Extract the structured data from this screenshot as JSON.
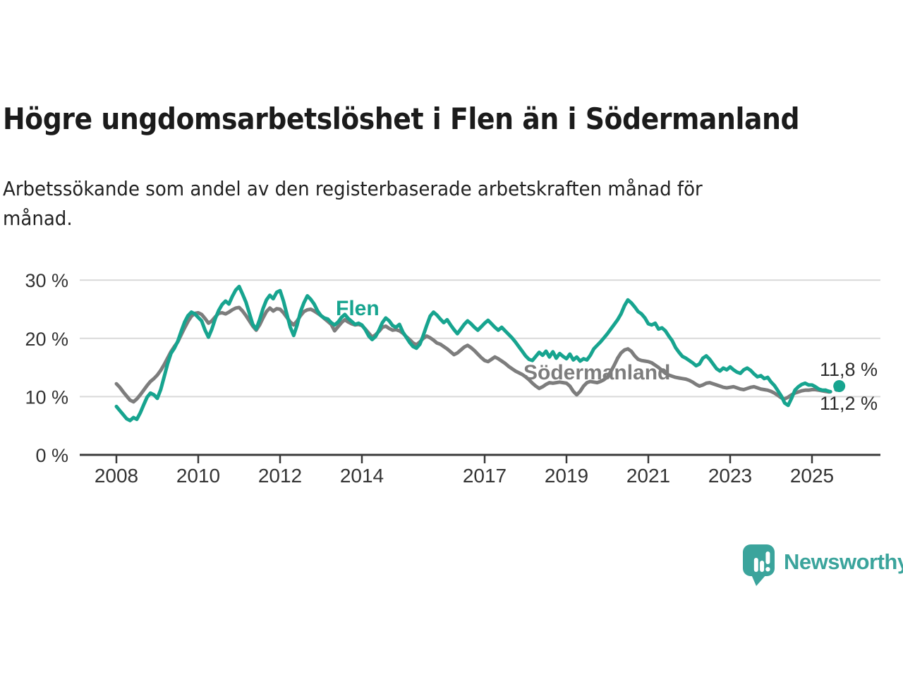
{
  "brand": {
    "name": "Newsworthy",
    "logo_icon": "speech-bubble-bar-chart-icon",
    "color": "#3ba49c"
  },
  "chart_data": {
    "type": "line",
    "title": "Högre ungdomsarbetslöshet i Flen än i Södermanland",
    "subtitle_lines": [
      "Arbetssökande som andel av den registerbaserade arbetskraften månad för",
      "månad."
    ],
    "frequency": "monthly",
    "x_start": 2008.0,
    "x_end": 2025.67,
    "x_ticks": [
      2008,
      2010,
      2012,
      2014,
      2017,
      2019,
      2021,
      2023,
      2025
    ],
    "y_ticks": [
      0,
      10,
      20,
      30
    ],
    "y_tick_labels": [
      "0 %",
      "10 %",
      "20 %",
      "30 %"
    ],
    "ylim": [
      0,
      32
    ],
    "grid": "horizontal",
    "legend_position": "inline-labels",
    "colors": {
      "axis": "#3a3a3a",
      "grid": "#d9d9d9",
      "tick_text": "#333333"
    },
    "series": [
      {
        "name": "Flen",
        "color": "#17a48f",
        "end_label": "11,8 %",
        "end_dot": true,
        "dashed_tail_points": 5,
        "values": [
          8.3,
          7.6,
          6.9,
          6.2,
          5.9,
          6.4,
          6.1,
          7.2,
          8.6,
          9.9,
          10.6,
          10.3,
          9.7,
          11.2,
          13.4,
          15.6,
          17.4,
          18.3,
          19.5,
          21.2,
          22.8,
          23.9,
          24.5,
          24.2,
          23.6,
          23.0,
          21.4,
          20.2,
          21.6,
          23.4,
          24.8,
          25.8,
          26.4,
          25.9,
          27.2,
          28.3,
          28.9,
          27.6,
          26.2,
          24.3,
          22.4,
          21.6,
          23.2,
          25.1,
          26.6,
          27.4,
          26.8,
          27.9,
          28.2,
          26.4,
          24.1,
          21.9,
          20.5,
          22.3,
          24.6,
          26.1,
          27.3,
          26.7,
          25.9,
          24.7,
          23.9,
          23.5,
          23.3,
          22.7,
          22.3,
          22.8,
          23.6,
          24.1,
          23.4,
          22.9,
          22.4,
          22.6,
          22.3,
          21.5,
          20.4,
          19.8,
          20.3,
          21.4,
          22.7,
          23.5,
          23.0,
          22.2,
          21.9,
          22.4,
          21.1,
          20.2,
          19.3,
          18.6,
          18.3,
          19.0,
          20.5,
          22.2,
          23.8,
          24.5,
          24.0,
          23.3,
          22.7,
          23.2,
          22.3,
          21.5,
          20.8,
          21.6,
          22.4,
          23.0,
          22.5,
          21.9,
          21.4,
          22.0,
          22.6,
          23.1,
          22.5,
          21.9,
          21.4,
          21.9,
          21.3,
          20.7,
          20.1,
          19.4,
          18.6,
          17.8,
          17.0,
          16.4,
          16.2,
          16.9,
          17.6,
          17.1,
          17.8,
          16.8,
          17.7,
          16.6,
          17.4,
          16.9,
          16.5,
          17.3,
          16.3,
          16.8,
          16.1,
          16.5,
          16.3,
          17.1,
          18.2,
          18.8,
          19.4,
          20.1,
          20.8,
          21.6,
          22.4,
          23.2,
          24.2,
          25.6,
          26.6,
          26.1,
          25.4,
          24.6,
          24.2,
          23.5,
          22.5,
          22.3,
          22.6,
          21.6,
          21.8,
          21.3,
          20.4,
          19.6,
          18.4,
          17.6,
          16.9,
          16.6,
          16.2,
          15.8,
          15.3,
          15.6,
          16.6,
          17.0,
          16.4,
          15.6,
          14.8,
          14.4,
          14.9,
          14.6,
          15.1,
          14.6,
          14.2,
          14.0,
          14.6,
          14.9,
          14.5,
          13.9,
          13.4,
          13.6,
          13.1,
          13.3,
          12.5,
          11.9,
          11.0,
          10.1,
          8.9,
          8.5,
          9.7,
          11.1,
          11.7,
          12.1,
          12.3,
          12.0,
          12.0,
          11.7,
          11.3,
          11.1,
          11.1,
          10.9,
          10.8,
          11.2,
          11.8
        ]
      },
      {
        "name": "Södermanland",
        "color": "#7d7d7d",
        "end_label": "11,2 %",
        "end_dot": false,
        "dashed_tail_points": 5,
        "values": [
          12.2,
          11.6,
          10.8,
          10.1,
          9.4,
          9.1,
          9.6,
          10.3,
          11.1,
          11.9,
          12.6,
          13.1,
          13.7,
          14.5,
          15.5,
          16.6,
          17.7,
          18.6,
          19.4,
          20.6,
          21.8,
          22.9,
          23.8,
          24.3,
          24.4,
          24.1,
          23.4,
          22.6,
          23.0,
          23.7,
          24.3,
          24.4,
          24.2,
          24.5,
          24.9,
          25.2,
          25.3,
          24.7,
          23.9,
          23.0,
          22.1,
          21.4,
          22.3,
          23.5,
          24.6,
          25.2,
          24.7,
          25.1,
          25.0,
          24.4,
          23.6,
          22.8,
          22.3,
          23.0,
          23.9,
          24.6,
          24.9,
          25.0,
          24.7,
          24.3,
          23.9,
          23.4,
          22.9,
          22.4,
          21.3,
          22.0,
          22.7,
          23.2,
          22.8,
          22.5,
          22.3,
          22.4,
          22.2,
          21.6,
          20.9,
          20.2,
          20.6,
          21.2,
          21.9,
          22.1,
          21.7,
          21.4,
          21.5,
          21.3,
          20.9,
          20.3,
          19.8,
          19.2,
          18.9,
          19.4,
          20.0,
          20.4,
          20.1,
          19.7,
          19.2,
          19.0,
          18.6,
          18.2,
          17.7,
          17.2,
          17.5,
          18.0,
          18.5,
          18.8,
          18.4,
          17.9,
          17.3,
          16.7,
          16.2,
          16.0,
          16.4,
          16.8,
          16.5,
          16.1,
          15.7,
          15.2,
          14.8,
          14.4,
          14.1,
          13.8,
          13.4,
          12.9,
          12.3,
          11.8,
          11.4,
          11.7,
          12.1,
          12.4,
          12.3,
          12.4,
          12.5,
          12.4,
          12.3,
          11.8,
          10.9,
          10.3,
          10.9,
          11.8,
          12.4,
          12.6,
          12.5,
          12.4,
          12.6,
          12.9,
          13.4,
          14.3,
          15.4,
          16.6,
          17.5,
          18.0,
          18.2,
          17.8,
          17.0,
          16.4,
          16.2,
          16.1,
          16.0,
          15.8,
          15.4,
          15.0,
          14.5,
          14.0,
          13.7,
          13.5,
          13.3,
          13.2,
          13.1,
          13.0,
          12.8,
          12.5,
          12.1,
          11.8,
          12.0,
          12.3,
          12.4,
          12.2,
          12.0,
          11.8,
          11.6,
          11.5,
          11.6,
          11.7,
          11.5,
          11.3,
          11.2,
          11.4,
          11.6,
          11.7,
          11.5,
          11.3,
          11.2,
          11.1,
          10.9,
          10.6,
          10.2,
          9.8,
          9.6,
          9.9,
          10.3,
          10.6,
          10.8,
          11.0,
          11.1,
          11.1,
          11.2,
          11.2,
          11.1,
          11.0,
          10.9,
          10.8,
          10.9,
          11.1,
          11.2
        ]
      }
    ]
  }
}
